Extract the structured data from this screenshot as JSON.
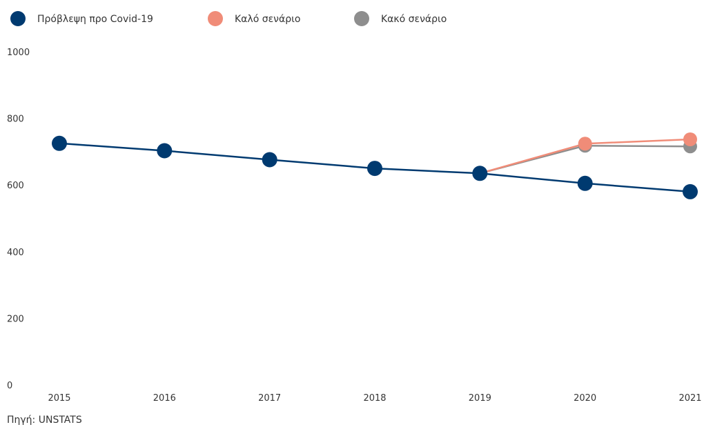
{
  "chart_data": {
    "type": "line",
    "title": "",
    "xlabel": "",
    "ylabel": "",
    "categories": [
      "2015",
      "2016",
      "2017",
      "2018",
      "2019",
      "2020",
      "2021"
    ],
    "ylim": [
      0,
      1000
    ],
    "yticks": [
      0,
      200,
      400,
      600,
      800,
      1000
    ],
    "grid": false,
    "legend": "top-left",
    "series": [
      {
        "name": "Πρόβλεψη προ Covid-19",
        "color": "#003a70",
        "values": [
          725,
          703,
          676,
          650,
          635,
          605,
          580
        ]
      },
      {
        "name": "Καλό σενάριο",
        "color": "#f08c78",
        "values": [
          null,
          null,
          null,
          null,
          635,
          724,
          737
        ]
      },
      {
        "name": "Κακό σενάριο",
        "color": "#8e8e8e",
        "values": [
          null,
          null,
          null,
          null,
          635,
          718,
          716
        ]
      }
    ]
  },
  "source": "Πηγή: UNSTATS"
}
